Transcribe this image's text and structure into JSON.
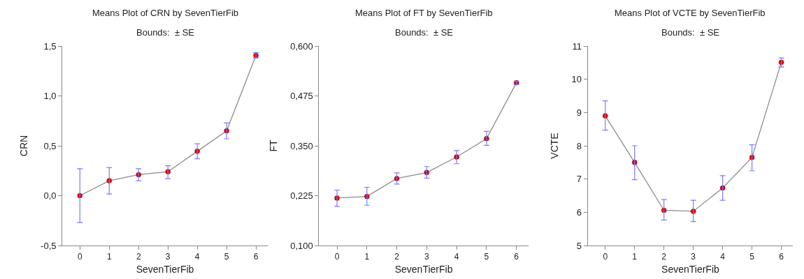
{
  "chart_data": [
    {
      "type": "line",
      "title": "Means Plot of CRN by SevenTierFib",
      "subtitle": "Bounds:  ± SE",
      "xlabel": "SevenTierFib",
      "ylabel": "CRN",
      "categories": [
        "0",
        "1",
        "2",
        "3",
        "4",
        "5",
        "6"
      ],
      "series": [
        {
          "color": "#e00000",
          "values": [
            0.0,
            0.15,
            0.21,
            0.24,
            0.445,
            0.65,
            1.405
          ],
          "errors": [
            [
              -0.27,
              0.27
            ],
            [
              0.016,
              0.28
            ],
            [
              0.15,
              0.27
            ],
            [
              0.17,
              0.3
            ],
            [
              0.37,
              0.52
            ],
            [
              0.57,
              0.73
            ],
            [
              1.38,
              1.435
            ]
          ]
        }
      ],
      "ylim": [
        -0.5,
        1.5
      ],
      "yticks": [
        {
          "value": -0.5,
          "label": "-0,5"
        },
        {
          "value": 0.0,
          "label": "0,0"
        },
        {
          "value": 0.5,
          "label": "0,5"
        },
        {
          "value": 1.0,
          "label": "1,0"
        },
        {
          "value": 1.5,
          "label": "1,5"
        }
      ],
      "marker": "circle"
    },
    {
      "type": "line",
      "title": "Means Plot of FT by SevenTierFib",
      "subtitle": "Bounds:  ± SE",
      "xlabel": "SevenTierFib",
      "ylabel": "FT",
      "categories": [
        "0",
        "1",
        "2",
        "3",
        "4",
        "5",
        "6"
      ],
      "series": [
        {
          "color": "#e00000",
          "values": [
            0.219,
            0.223,
            0.268,
            0.283,
            0.322,
            0.368,
            0.508
          ],
          "errors": [
            [
              0.198,
              0.239
            ],
            [
              0.201,
              0.246
            ],
            [
              0.254,
              0.282
            ],
            [
              0.269,
              0.298
            ],
            [
              0.305,
              0.338
            ],
            [
              0.351,
              0.386
            ],
            [
              0.503,
              0.512
            ]
          ]
        }
      ],
      "ylim": [
        0.1,
        0.6
      ],
      "yticks": [
        {
          "value": 0.1,
          "label": "0,100"
        },
        {
          "value": 0.225,
          "label": "0,225"
        },
        {
          "value": 0.35,
          "label": "0,350"
        },
        {
          "value": 0.475,
          "label": "0,475"
        },
        {
          "value": 0.6,
          "label": "0,600"
        }
      ],
      "marker": "circle"
    },
    {
      "type": "line",
      "title": "Means Plot of VCTE by SevenTierFib",
      "subtitle": "Bounds:  ± SE",
      "xlabel": "SevenTierFib",
      "ylabel": "VCTE",
      "categories": [
        "0",
        "1",
        "2",
        "3",
        "4",
        "5",
        "6"
      ],
      "series": [
        {
          "color": "#e00000",
          "values": [
            8.9,
            7.5,
            6.06,
            6.03,
            6.73,
            7.65,
            10.51
          ],
          "errors": [
            [
              8.47,
              9.35
            ],
            [
              6.98,
              8.0
            ],
            [
              5.77,
              6.38
            ],
            [
              5.72,
              6.36
            ],
            [
              6.36,
              7.1
            ],
            [
              7.25,
              8.03
            ],
            [
              10.37,
              10.64
            ]
          ]
        }
      ],
      "ylim": [
        5,
        11
      ],
      "yticks": [
        5,
        6,
        7,
        8,
        9,
        10,
        11
      ],
      "marker": "circle"
    }
  ]
}
